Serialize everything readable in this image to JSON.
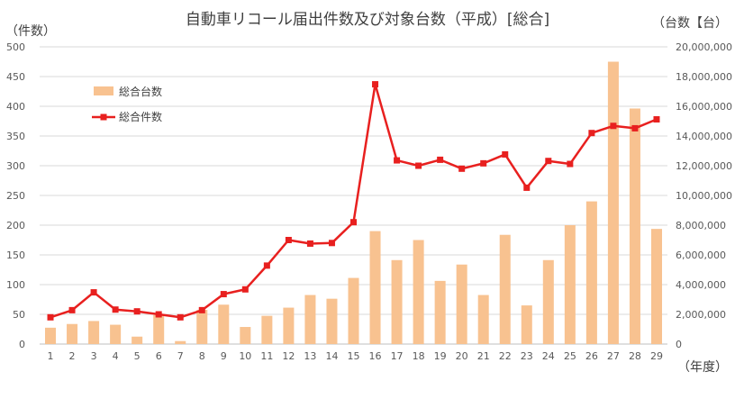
{
  "chart_data": {
    "type": "bar+line",
    "title": "自動車リコール届出件数及び対象台数（平成）[総合]",
    "left_axis_label": "（件数）",
    "right_axis_label": "（台数【台）",
    "x_axis_label": "（年度）",
    "categories": [
      "1",
      "2",
      "3",
      "4",
      "5",
      "6",
      "7",
      "8",
      "9",
      "10",
      "11",
      "12",
      "13",
      "14",
      "15",
      "16",
      "17",
      "18",
      "19",
      "20",
      "21",
      "22",
      "23",
      "24",
      "25",
      "26",
      "27",
      "28",
      "29"
    ],
    "left_ylim": [
      0,
      500
    ],
    "left_ticks": [
      "0",
      "50",
      "100",
      "150",
      "200",
      "250",
      "300",
      "350",
      "400",
      "450",
      "500"
    ],
    "right_ylim": [
      0,
      20000000
    ],
    "right_ticks": [
      "0",
      "2,000,000",
      "4,000,000",
      "6,000,000",
      "8,000,000",
      "10,000,000",
      "12,000,000",
      "14,000,000",
      "16,000,000",
      "18,000,000",
      "20,000,000"
    ],
    "grid": true,
    "legend_position": "top-left",
    "series": [
      {
        "name": "総合台数",
        "type": "bar",
        "axis": "right",
        "color": "#F8C290",
        "values": [
          1100000,
          1350000,
          1550000,
          1300000,
          500000,
          1950000,
          200000,
          2300000,
          2650000,
          1150000,
          1900000,
          2450000,
          3300000,
          3050000,
          4450000,
          7600000,
          5650000,
          7000000,
          4250000,
          5350000,
          3300000,
          7350000,
          2600000,
          5650000,
          8000000,
          9600000,
          19000000,
          15850000,
          7750000
        ]
      },
      {
        "name": "総合件数",
        "type": "line",
        "axis": "left",
        "color": "#E8201F",
        "values": [
          45,
          57,
          87,
          58,
          55,
          50,
          45,
          57,
          84,
          92,
          132,
          175,
          169,
          170,
          205,
          437,
          309,
          300,
          310,
          295,
          304,
          319,
          263,
          308,
          303,
          355,
          367,
          363,
          378
        ]
      }
    ]
  }
}
